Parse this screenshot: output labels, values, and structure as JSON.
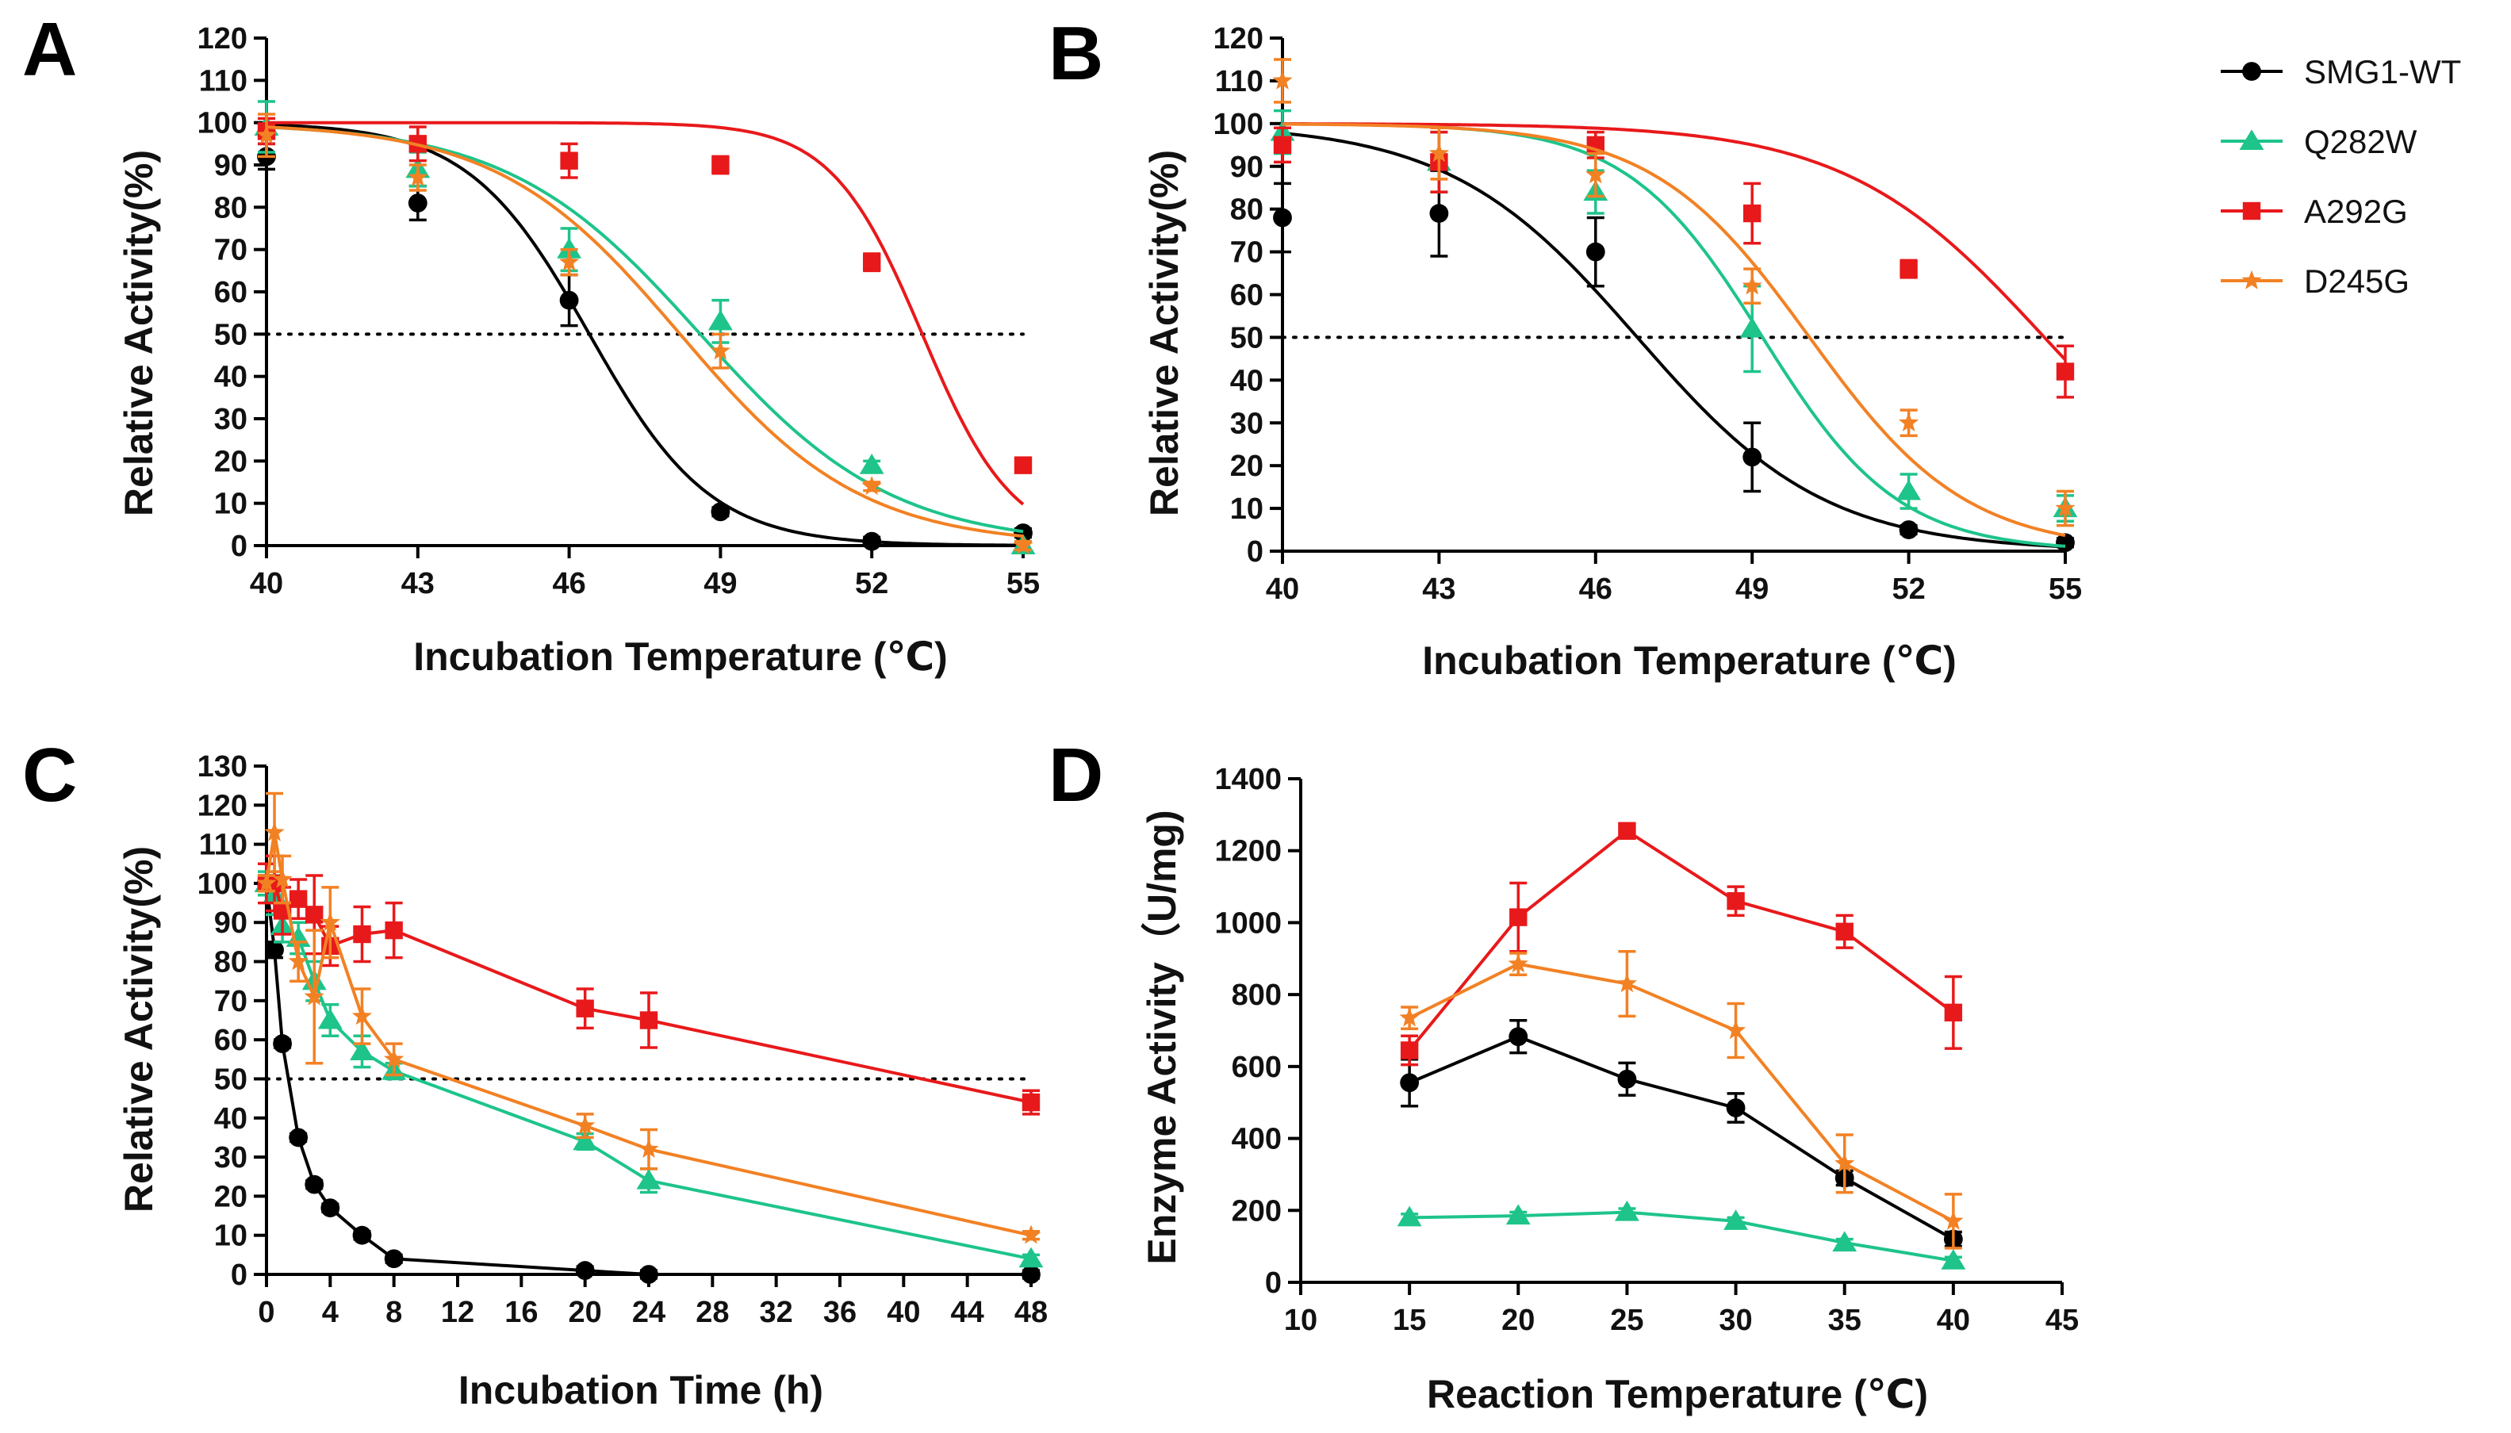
{
  "legend": [
    {
      "name": "SMG1-WT",
      "color": "#000000",
      "marker": "circle"
    },
    {
      "name": "Q282W",
      "color": "#1ec48a",
      "marker": "triangle"
    },
    {
      "name": "A292G",
      "color": "#e8191b",
      "marker": "square"
    },
    {
      "name": "D245G",
      "color": "#f28124",
      "marker": "star"
    }
  ],
  "chart_data": [
    {
      "panel": "A",
      "type": "line",
      "style": "fitted-sigmoid",
      "xlabel": "Incubation Temperature (℃)",
      "ylabel": "Relative Activity(%)",
      "xlim": [
        40,
        55
      ],
      "ylim": [
        0,
        120
      ],
      "xticks": [
        40,
        43,
        46,
        49,
        52,
        55
      ],
      "yticks": [
        0,
        10,
        20,
        30,
        40,
        50,
        60,
        70,
        80,
        90,
        100,
        110,
        120
      ],
      "reference_line": 50,
      "x": [
        40,
        43,
        46,
        49,
        52,
        55
      ],
      "series": [
        {
          "name": "SMG1-WT",
          "values": [
            92,
            81,
            58,
            8,
            1,
            3
          ],
          "errors": [
            3,
            4,
            6,
            1,
            1,
            1
          ],
          "fit": {
            "top": 100,
            "tm": 46.4,
            "slope": 1.2
          }
        },
        {
          "name": "Q282W",
          "values": [
            99,
            89,
            70,
            53,
            19,
            0
          ],
          "errors": [
            6,
            4,
            5,
            5,
            1,
            1
          ],
          "fit": {
            "top": 100,
            "tm": 48.6,
            "slope": 1.9
          }
        },
        {
          "name": "A292G",
          "values": [
            98,
            95,
            91,
            90,
            67,
            19
          ],
          "errors": [
            3,
            4,
            4,
            2,
            2,
            1
          ],
          "fit": {
            "top": 100,
            "tm": 53.0,
            "slope": 0.9
          }
        },
        {
          "name": "D245G",
          "values": [
            97,
            87,
            67,
            46,
            14,
            0
          ],
          "errors": [
            5,
            3,
            3,
            4,
            1,
            1
          ],
          "fit": {
            "top": 100,
            "tm": 48.2,
            "slope": 1.8
          }
        }
      ]
    },
    {
      "panel": "B",
      "type": "line",
      "style": "fitted-sigmoid",
      "xlabel": "Incubation Temperature (℃)",
      "ylabel": "Relative Activity(%)",
      "xlim": [
        40,
        55
      ],
      "ylim": [
        0,
        120
      ],
      "xticks": [
        40,
        43,
        46,
        49,
        52,
        55
      ],
      "yticks": [
        0,
        10,
        20,
        30,
        40,
        50,
        60,
        70,
        80,
        90,
        100,
        110,
        120
      ],
      "reference_line": 50,
      "x": [
        40,
        43,
        46,
        49,
        52,
        55
      ],
      "series": [
        {
          "name": "SMG1-WT",
          "values": [
            78,
            79,
            70,
            22,
            5,
            2
          ],
          "errors": [
            8,
            10,
            8,
            8,
            1,
            1
          ],
          "fit": {
            "top": 100,
            "tm": 46.8,
            "slope": 1.8
          }
        },
        {
          "name": "Q282W",
          "values": [
            98,
            91,
            84,
            52,
            14,
            10
          ],
          "errors": [
            5,
            7,
            5,
            10,
            4,
            3
          ],
          "fit": {
            "top": 100,
            "tm": 49.2,
            "slope": 1.3
          }
        },
        {
          "name": "A292G",
          "values": [
            95,
            91,
            95,
            79,
            66,
            42
          ],
          "errors": [
            4,
            7,
            3,
            7,
            2,
            6
          ],
          "fit": {
            "top": 100,
            "tm": 54.6,
            "slope": 1.9
          }
        },
        {
          "name": "D245G",
          "values": [
            110,
            93,
            88,
            62,
            30,
            10
          ],
          "errors": [
            5,
            6,
            5,
            4,
            3,
            4
          ],
          "fit": {
            "top": 100,
            "tm": 50.1,
            "slope": 1.5
          }
        }
      ]
    },
    {
      "panel": "C",
      "type": "line",
      "style": "connected-points",
      "xlabel": "Incubation Time (h)",
      "ylabel": "Relative Activity(%)",
      "xlim": [
        0,
        48
      ],
      "ylim": [
        0,
        130
      ],
      "xticks": [
        0,
        4,
        8,
        12,
        16,
        20,
        24,
        28,
        32,
        36,
        40,
        44,
        48
      ],
      "yticks": [
        0,
        10,
        20,
        30,
        40,
        50,
        60,
        70,
        80,
        90,
        100,
        110,
        120,
        130
      ],
      "reference_line": 50,
      "series": [
        {
          "name": "SMG1-WT",
          "x": [
            0,
            0.5,
            1,
            2,
            3,
            4,
            6,
            8,
            20,
            24,
            48
          ],
          "values": [
            100,
            83,
            59,
            35,
            23,
            17,
            10,
            4,
            1,
            0,
            0
          ],
          "errors": [
            2,
            2,
            1,
            1,
            1,
            1,
            1,
            1,
            1,
            1,
            1
          ]
        },
        {
          "name": "Q282W",
          "x": [
            0,
            0.5,
            1,
            2,
            3,
            4,
            6,
            8,
            20,
            24,
            48
          ],
          "values": [
            100,
            97,
            89,
            86,
            75,
            65,
            57,
            52,
            34,
            24,
            4
          ],
          "errors": [
            3,
            5,
            4,
            4,
            5,
            4,
            4,
            2,
            2,
            3,
            1
          ]
        },
        {
          "name": "A292G",
          "x": [
            0,
            0.5,
            1,
            2,
            3,
            4,
            6,
            8,
            20,
            24,
            48
          ],
          "values": [
            100,
            100,
            93,
            96,
            92,
            84,
            87,
            88,
            68,
            65,
            44
          ],
          "errors": [
            5,
            7,
            6,
            5,
            10,
            5,
            7,
            7,
            5,
            7,
            3
          ]
        },
        {
          "name": "D245G",
          "x": [
            0,
            0.5,
            1,
            2,
            3,
            4,
            6,
            8,
            20,
            24,
            48
          ],
          "values": [
            100,
            113,
            101,
            80,
            71,
            90,
            66,
            55,
            38,
            32,
            10
          ],
          "errors": [
            2,
            10,
            6,
            5,
            17,
            9,
            7,
            4,
            3,
            5,
            1
          ]
        }
      ]
    },
    {
      "panel": "D",
      "type": "line",
      "style": "connected-points",
      "xlabel": "Reaction Temperature (℃)",
      "ylabel": "Enzyme Activity（U/mg)",
      "xlim": [
        10,
        45
      ],
      "ylim": [
        0,
        1400
      ],
      "xticks": [
        10,
        15,
        20,
        25,
        30,
        35,
        40,
        45
      ],
      "yticks": [
        0,
        200,
        400,
        600,
        800,
        1000,
        1200,
        1400
      ],
      "x": [
        15,
        20,
        25,
        30,
        35,
        40
      ],
      "series": [
        {
          "name": "SMG1-WT",
          "values": [
            555,
            683,
            565,
            485,
            290,
            120
          ],
          "errors": [
            65,
            45,
            45,
            40,
            20,
            20
          ]
        },
        {
          "name": "Q282W",
          "values": [
            180,
            185,
            195,
            170,
            110,
            60
          ],
          "errors": [
            10,
            10,
            10,
            10,
            10,
            10
          ]
        },
        {
          "name": "A292G",
          "values": [
            645,
            1015,
            1255,
            1060,
            975,
            750
          ],
          "errors": [
            40,
            95,
            15,
            40,
            45,
            100
          ]
        },
        {
          "name": "D245G",
          "values": [
            735,
            885,
            830,
            700,
            330,
            170
          ],
          "errors": [
            30,
            30,
            90,
            75,
            80,
            75
          ]
        }
      ]
    }
  ]
}
